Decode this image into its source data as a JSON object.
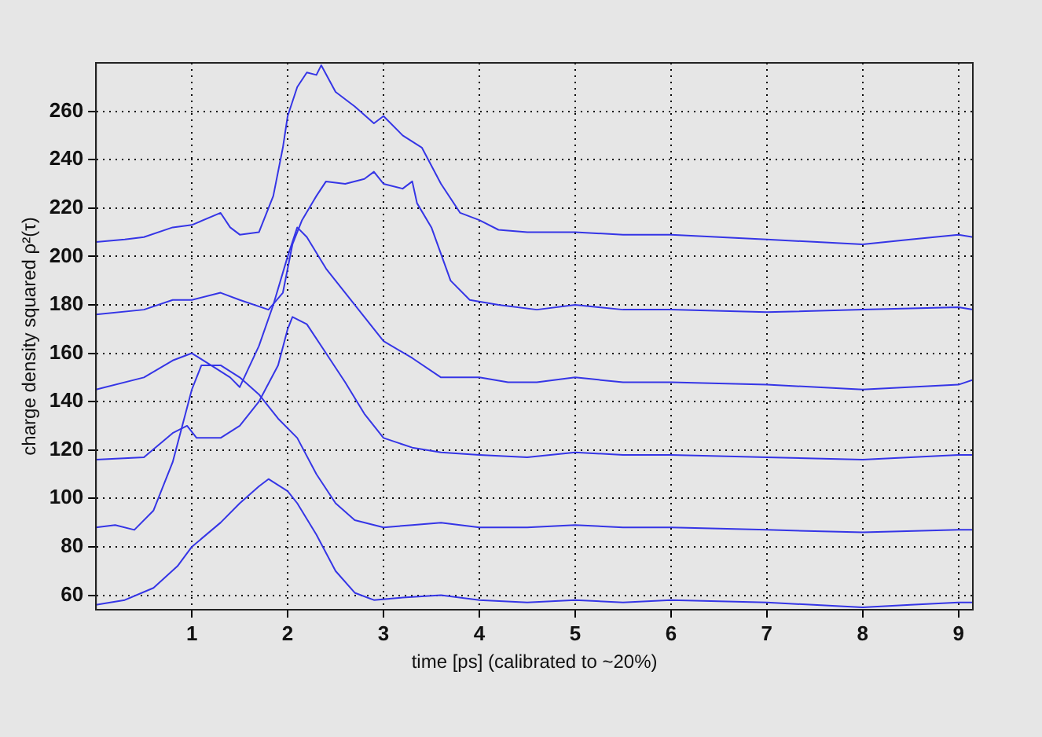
{
  "chart_data": {
    "type": "line",
    "xlabel": "time [ps] (calibrated to ~20%)",
    "ylabel": "charge density squared ρ²(τ)",
    "xlim": [
      0,
      9.15
    ],
    "ylim": [
      54,
      280
    ],
    "xticks": [
      1,
      2,
      3,
      4,
      5,
      6,
      7,
      8,
      9
    ],
    "yticks": [
      60,
      80,
      100,
      120,
      140,
      160,
      180,
      200,
      220,
      240,
      260
    ],
    "grid": true,
    "legend": false,
    "marker": "none",
    "line_style": "solid",
    "series": [
      {
        "color": "#3535e6",
        "x": [
          0,
          0.3,
          0.5,
          0.8,
          1.0,
          1.3,
          1.4,
          1.5,
          1.7,
          1.85,
          1.95,
          2.0,
          2.1,
          2.2,
          2.3,
          2.35,
          2.5,
          2.7,
          2.9,
          3.0,
          3.2,
          3.4,
          3.6,
          3.8,
          4.0,
          4.2,
          4.5,
          5,
          5.5,
          6,
          7,
          8,
          8.5,
          9,
          9.15
        ],
        "values": [
          206,
          207,
          208,
          212,
          213,
          218,
          212,
          209,
          210,
          225,
          245,
          258,
          270,
          276,
          275,
          279,
          268,
          262,
          255,
          258,
          250,
          245,
          230,
          218,
          215,
          211,
          210,
          210,
          209,
          209,
          207,
          205,
          207,
          209,
          208
        ]
      },
      {
        "color": "#3535e6",
        "x": [
          0,
          0.5,
          0.8,
          1.0,
          1.3,
          1.5,
          1.8,
          1.95,
          2.05,
          2.15,
          2.3,
          2.4,
          2.6,
          2.8,
          2.9,
          3.0,
          3.2,
          3.3,
          3.35,
          3.5,
          3.7,
          3.9,
          4.2,
          4.6,
          5,
          5.5,
          6,
          7,
          8,
          9,
          9.15
        ],
        "values": [
          176,
          178,
          182,
          182,
          185,
          182,
          178,
          185,
          205,
          215,
          225,
          231,
          230,
          232,
          235,
          230,
          228,
          231,
          222,
          212,
          190,
          182,
          180,
          178,
          180,
          178,
          178,
          177,
          178,
          179,
          178
        ]
      },
      {
        "color": "#3535e6",
        "x": [
          0,
          0.5,
          0.8,
          1.0,
          1.2,
          1.4,
          1.5,
          1.7,
          1.85,
          2.0,
          2.1,
          2.2,
          2.4,
          2.6,
          2.8,
          3.0,
          3.3,
          3.6,
          4.0,
          4.3,
          4.6,
          5,
          5.5,
          6,
          7,
          8,
          9,
          9.15
        ],
        "values": [
          145,
          150,
          157,
          160,
          155,
          150,
          146,
          163,
          180,
          200,
          212,
          208,
          195,
          185,
          175,
          165,
          158,
          150,
          150,
          148,
          148,
          150,
          148,
          148,
          147,
          145,
          147,
          149
        ]
      },
      {
        "color": "#3535e6",
        "x": [
          0,
          0.5,
          0.8,
          0.95,
          1.05,
          1.3,
          1.5,
          1.7,
          1.9,
          2.0,
          2.05,
          2.2,
          2.4,
          2.6,
          2.8,
          3.0,
          3.3,
          3.6,
          4.0,
          4.5,
          5,
          5.5,
          6,
          7,
          8,
          9,
          9.15
        ],
        "values": [
          116,
          117,
          127,
          130,
          125,
          125,
          130,
          140,
          155,
          170,
          175,
          172,
          160,
          148,
          135,
          125,
          121,
          119,
          118,
          117,
          119,
          118,
          118,
          117,
          116,
          118,
          118
        ]
      },
      {
        "color": "#3535e6",
        "x": [
          0,
          0.2,
          0.4,
          0.6,
          0.8,
          0.9,
          1.0,
          1.1,
          1.3,
          1.5,
          1.7,
          1.9,
          2.1,
          2.3,
          2.5,
          2.7,
          3.0,
          3.3,
          3.6,
          4.0,
          4.5,
          5,
          5.5,
          6,
          7,
          8,
          9,
          9.15
        ],
        "values": [
          88,
          89,
          87,
          95,
          115,
          130,
          145,
          155,
          155,
          150,
          143,
          133,
          125,
          110,
          98,
          91,
          88,
          89,
          90,
          88,
          88,
          89,
          88,
          88,
          87,
          86,
          87,
          87
        ]
      },
      {
        "color": "#3535e6",
        "x": [
          0,
          0.3,
          0.6,
          0.85,
          1.0,
          1.3,
          1.5,
          1.7,
          1.8,
          2.0,
          2.1,
          2.3,
          2.5,
          2.7,
          2.9,
          3.2,
          3.6,
          4.0,
          4.5,
          5,
          5.5,
          6,
          7,
          8,
          8.5,
          9,
          9.15
        ],
        "values": [
          56,
          58,
          63,
          72,
          80,
          90,
          98,
          105,
          108,
          103,
          98,
          85,
          70,
          61,
          58,
          59,
          60,
          58,
          57,
          58,
          57,
          58,
          57,
          55,
          56,
          57,
          57
        ]
      }
    ]
  }
}
